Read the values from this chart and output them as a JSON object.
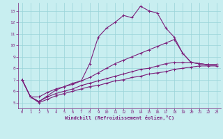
{
  "background_color": "#c8eef0",
  "line_color": "#7B1F7B",
  "grid_color": "#9ad4d8",
  "xlabel": "Windchill (Refroidissement éolien,°C)",
  "xlabel_color": "#7B1F7B",
  "tick_color": "#7B1F7B",
  "spine_color": "#7B1F7B",
  "xlim": [
    -0.5,
    23.5
  ],
  "ylim": [
    4.5,
    13.7
  ],
  "yticks": [
    5,
    6,
    7,
    8,
    9,
    10,
    11,
    12,
    13
  ],
  "xticks": [
    0,
    1,
    2,
    3,
    4,
    5,
    6,
    7,
    8,
    9,
    10,
    11,
    12,
    13,
    14,
    15,
    16,
    17,
    18,
    19,
    20,
    21,
    22,
    23
  ],
  "lines": [
    {
      "x": [
        0,
        1,
        2,
        3,
        4,
        5,
        6,
        7,
        8,
        9,
        10,
        11,
        12,
        13,
        14,
        15,
        16,
        17,
        18,
        19,
        20,
        21,
        22,
        23
      ],
      "y": [
        7.0,
        5.5,
        5.1,
        5.6,
        6.1,
        6.4,
        6.7,
        6.9,
        8.4,
        10.7,
        11.5,
        12.0,
        12.6,
        12.4,
        13.4,
        13.0,
        12.8,
        11.5,
        10.7,
        9.3,
        8.5,
        8.4,
        8.3,
        8.3
      ]
    },
    {
      "x": [
        0,
        1,
        2,
        3,
        4,
        5,
        6,
        7,
        8,
        9,
        10,
        11,
        12,
        13,
        14,
        15,
        16,
        17,
        18,
        19,
        20,
        21,
        22,
        23
      ],
      "y": [
        7.0,
        5.5,
        5.5,
        5.9,
        6.2,
        6.4,
        6.6,
        6.9,
        7.2,
        7.6,
        8.0,
        8.4,
        8.7,
        9.0,
        9.3,
        9.6,
        9.9,
        10.2,
        10.5,
        9.3,
        8.5,
        8.4,
        8.3,
        8.3
      ]
    },
    {
      "x": [
        0,
        1,
        2,
        3,
        4,
        5,
        6,
        7,
        8,
        9,
        10,
        11,
        12,
        13,
        14,
        15,
        16,
        17,
        18,
        19,
        20,
        21,
        22,
        23
      ],
      "y": [
        7.0,
        5.5,
        5.1,
        5.5,
        5.8,
        6.0,
        6.2,
        6.5,
        6.7,
        6.9,
        7.1,
        7.3,
        7.5,
        7.7,
        7.9,
        8.0,
        8.2,
        8.4,
        8.5,
        8.5,
        8.5,
        8.4,
        8.3,
        8.3
      ]
    },
    {
      "x": [
        0,
        1,
        2,
        3,
        4,
        5,
        6,
        7,
        8,
        9,
        10,
        11,
        12,
        13,
        14,
        15,
        16,
        17,
        18,
        19,
        20,
        21,
        22,
        23
      ],
      "y": [
        7.0,
        5.5,
        5.0,
        5.3,
        5.6,
        5.8,
        6.0,
        6.2,
        6.4,
        6.5,
        6.7,
        6.9,
        7.0,
        7.2,
        7.3,
        7.5,
        7.6,
        7.7,
        7.9,
        8.0,
        8.1,
        8.2,
        8.2,
        8.2
      ]
    }
  ]
}
